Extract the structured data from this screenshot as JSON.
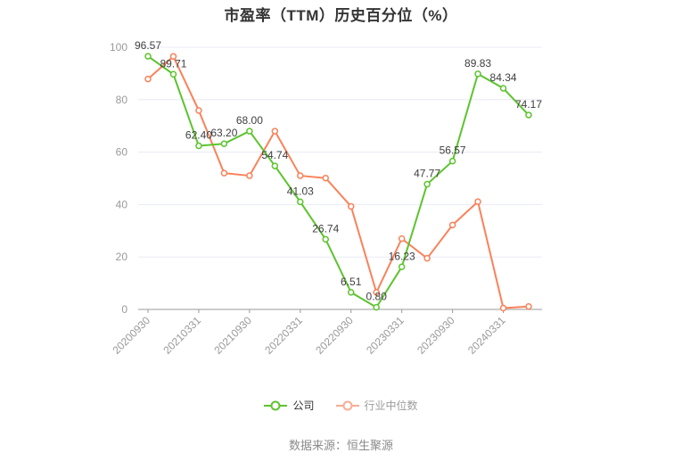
{
  "title": "市盈率（TTM）历史百分位（%）",
  "source_note": "数据来源：恒生聚源",
  "legend": [
    {
      "label": "公司",
      "marker_color": "#5cc42e",
      "text_color": "#333333"
    },
    {
      "label": "行业中位数",
      "marker_color": "#fbab92",
      "text_color": "#9b9b9b"
    }
  ],
  "colors": {
    "company_line": "#5cc42e",
    "industry_line": "#f9825a",
    "grid_line": "#e8ecf4",
    "axis_line": "#999999",
    "tick_label": "#999999",
    "value_label": "#404040",
    "title_text": "#333333",
    "source_text": "#8a8a8a"
  },
  "chart_data": {
    "type": "line",
    "title": "市盈率（TTM）历史百分位（%）",
    "xlabel": "",
    "ylabel": "",
    "ylim": [
      0,
      100
    ],
    "yticks": [
      0,
      20,
      40,
      60,
      80,
      100
    ],
    "grid": true,
    "legend_position": "bottom",
    "x_tick_labels": [
      "20200930",
      "20210331",
      "20210930",
      "20220331",
      "20220930",
      "20230331",
      "20230930",
      "20240331"
    ],
    "points_per_tick": 2,
    "n_points": 16,
    "series": [
      {
        "key": "company",
        "name": "公司",
        "color": "#5cc42e",
        "show_labels": true,
        "values": [
          96.57,
          89.71,
          62.4,
          63.2,
          68.0,
          54.74,
          41.03,
          26.74,
          6.51,
          0.8,
          16.23,
          47.77,
          56.57,
          89.83,
          84.34,
          74.17
        ]
      },
      {
        "key": "industry-median",
        "name": "行业中位数",
        "color": "#f9825a",
        "show_labels": false,
        "values": [
          87.9,
          96.5,
          75.9,
          52.0,
          51.0,
          68.0,
          51.0,
          50.1,
          39.3,
          6.5,
          27.0,
          19.5,
          32.2,
          41.1,
          0.5,
          1.1
        ]
      }
    ]
  }
}
